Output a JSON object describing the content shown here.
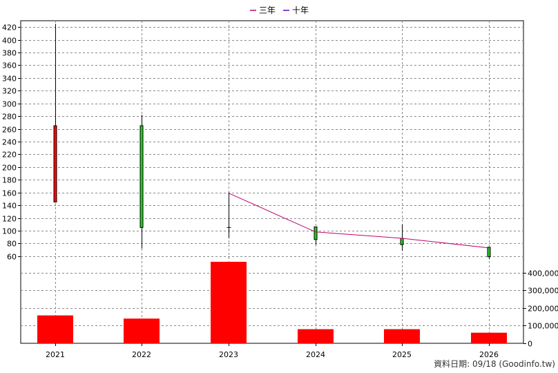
{
  "legend": [
    {
      "label": "三年",
      "color": "#c0006c"
    },
    {
      "label": "十年",
      "color": "#6a00c8"
    }
  ],
  "footer": "資料日期: 09/18 (Goodinfo.tw)",
  "chart_data": {
    "type": "candlestick",
    "categories": [
      "2021",
      "2022",
      "2023",
      "2024",
      "2025",
      "2026"
    ],
    "price": {
      "ylim": [
        50,
        430
      ],
      "yticks": [
        60,
        80,
        100,
        120,
        140,
        160,
        180,
        200,
        220,
        240,
        260,
        280,
        300,
        320,
        340,
        360,
        380,
        400,
        420
      ],
      "candles": [
        {
          "open": 145,
          "close": 265,
          "high": 425,
          "low": 145
        },
        {
          "open": 265,
          "close": 105,
          "high": 282,
          "low": 72
        },
        {
          "open": 105,
          "close": 105,
          "high": 160,
          "low": 88
        },
        {
          "open": 106,
          "close": 86,
          "high": 106,
          "low": 78
        },
        {
          "open": 88,
          "close": 78,
          "high": 110,
          "low": 68
        },
        {
          "open": 74,
          "close": 59,
          "high": 74,
          "low": 55
        }
      ],
      "colors": {
        "up": "#ff0000",
        "down": "#22cc22"
      }
    },
    "lines": [
      {
        "name": "三年",
        "color": "#c0006c",
        "points": [
          [
            2,
            159
          ],
          [
            3,
            98
          ],
          [
            4,
            88
          ],
          [
            5,
            73
          ]
        ]
      }
    ],
    "volume": {
      "ylim": [
        0,
        450000
      ],
      "yticks": [
        0,
        100000,
        200000,
        300000,
        400000
      ],
      "ytick_labels": [
        "0",
        "100,000",
        "200,000",
        "300,000",
        "400,000"
      ],
      "values": [
        158000,
        140000,
        462000,
        80000,
        80000,
        60000
      ],
      "color": "#ff0000"
    }
  }
}
